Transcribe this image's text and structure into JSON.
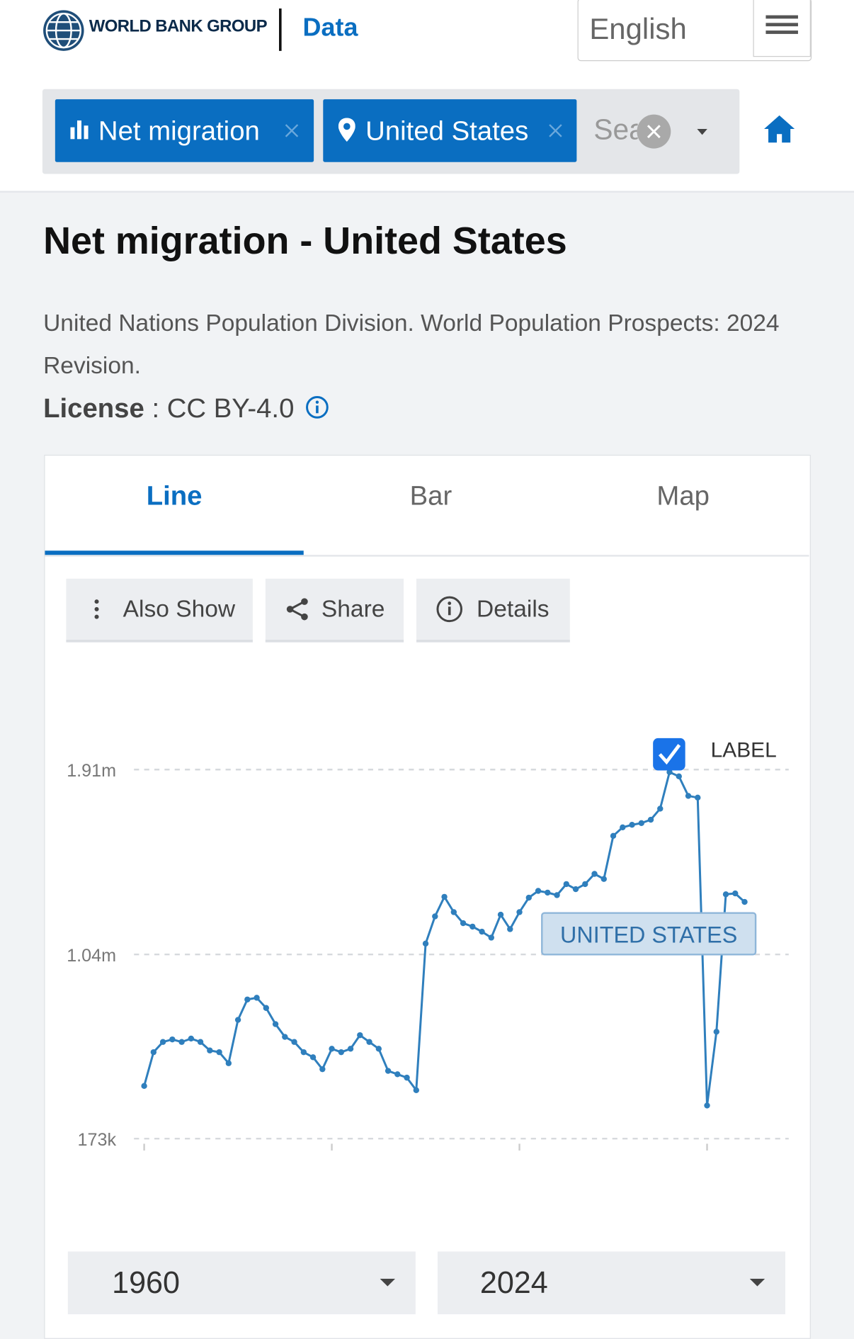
{
  "header": {
    "brand": "WORLD BANK GROUP",
    "section": "Data",
    "language": "English"
  },
  "filters": {
    "indicator": "Net migration",
    "country": "United States",
    "search_placeholder": "Sea"
  },
  "title": "Net migration - United States",
  "source": "United Nations Population Division. World Population Prospects: 2024 Revision.",
  "license": {
    "label": "License",
    "value": ": CC BY-4.0"
  },
  "tabs": [
    "Line",
    "Bar",
    "Map"
  ],
  "actions": [
    "Also Show",
    "Share",
    "Details"
  ],
  "range": {
    "start": "1960",
    "end": "2024"
  },
  "chart_data": {
    "type": "line",
    "label_toggle": "LABEL",
    "x": [
      1960,
      1961,
      1962,
      1963,
      1964,
      1965,
      1966,
      1967,
      1968,
      1969,
      1970,
      1971,
      1972,
      1973,
      1974,
      1975,
      1976,
      1977,
      1978,
      1979,
      1980,
      1981,
      1982,
      1983,
      1984,
      1985,
      1986,
      1987,
      1988,
      1989,
      1990,
      1991,
      1992,
      1993,
      1994,
      1995,
      1996,
      1997,
      1998,
      1999,
      2000,
      2001,
      2002,
      2003,
      2004,
      2005,
      2006,
      2007,
      2008,
      2009,
      2010,
      2011,
      2012,
      2013,
      2014,
      2015,
      2016,
      2017,
      2018,
      2019,
      2020,
      2021,
      2022,
      2023,
      2024
    ],
    "xlim": [
      1960,
      2024
    ],
    "xticks": [
      1960,
      1980,
      2000,
      2020
    ],
    "ylim": [
      173000,
      1910000
    ],
    "yticks": [
      {
        "value": 173000,
        "label": "173k"
      },
      {
        "value": 1040000,
        "label": "1.04m"
      },
      {
        "value": 1910000,
        "label": "1.91m"
      }
    ],
    "grid": true,
    "series": [
      {
        "name": "UNITED STATES",
        "color": "#2f7fbd",
        "values": [
          421000,
          580000,
          628000,
          640000,
          628000,
          644000,
          628000,
          588000,
          580000,
          528000,
          732000,
          828000,
          836000,
          788000,
          712000,
          652000,
          628000,
          580000,
          556000,
          500000,
          596000,
          580000,
          596000,
          660000,
          628000,
          596000,
          492000,
          476000,
          460000,
          401000,
          1091000,
          1219000,
          1311000,
          1239000,
          1187000,
          1171000,
          1147000,
          1119000,
          1227000,
          1159000,
          1239000,
          1307000,
          1339000,
          1331000,
          1319000,
          1371000,
          1347000,
          1371000,
          1419000,
          1395000,
          1598000,
          1638000,
          1650000,
          1658000,
          1674000,
          1726000,
          1898000,
          1878000,
          1786000,
          1778000,
          329000,
          676000,
          1323000,
          1327000,
          1287000
        ]
      }
    ]
  }
}
